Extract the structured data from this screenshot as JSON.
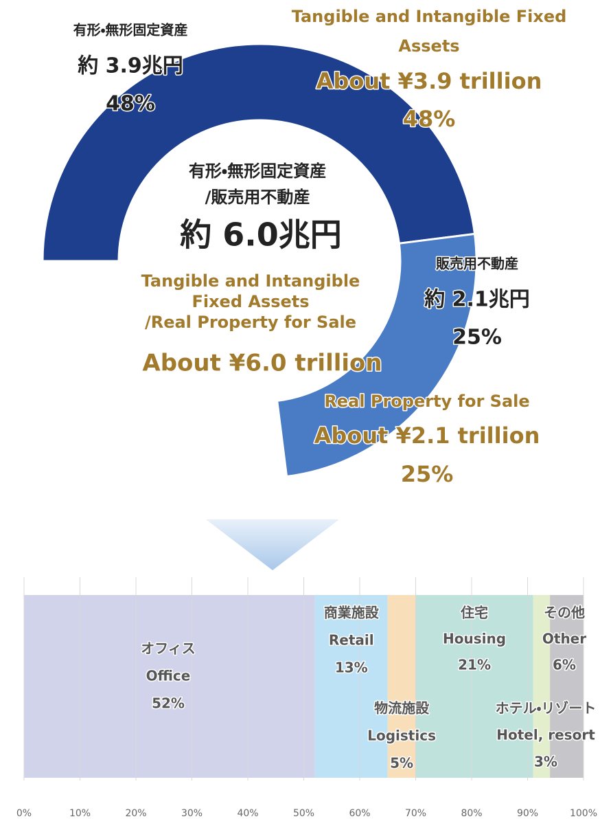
{
  "chart_data": [
    {
      "type": "donut",
      "center_ja": [
        "有形・無形固定資産",
        "/販売用不動産"
      ],
      "center_amount_ja": "約 6.0兆円",
      "center_en": [
        "Tangible and Intangible",
        "Fixed Assets",
        "/Real Property for Sale"
      ],
      "center_amount_en": "About ¥6.0 trillion",
      "segments": [
        {
          "name_ja": "有形・無形固定資産",
          "amount_ja": "約 3.9兆円",
          "name_en": [
            "Tangible and Intangible Fixed",
            "Assets"
          ],
          "amount_en": "About ¥3.9 trillion",
          "value": 48,
          "value_label": "48%",
          "color": "#1d3f8e"
        },
        {
          "name_ja": "販売用不動産",
          "amount_ja": "約 2.1兆円",
          "name_en": [
            "Real Property for Sale"
          ],
          "amount_en": "About ¥2.1 trillion",
          "value": 25,
          "value_label": "25%",
          "color": "#4a7cc6"
        }
      ]
    },
    {
      "type": "stacked-bar",
      "xlim": [
        0,
        100
      ],
      "xticks": [
        {
          "value": 0,
          "label": "0%"
        },
        {
          "value": 10,
          "label": "10%"
        },
        {
          "value": 20,
          "label": "20%"
        },
        {
          "value": 30,
          "label": "30%"
        },
        {
          "value": 40,
          "label": "40%"
        },
        {
          "value": 50,
          "label": "50%"
        },
        {
          "value": 60,
          "label": "60%"
        },
        {
          "value": 70,
          "label": "70%"
        },
        {
          "value": 80,
          "label": "80%"
        },
        {
          "value": 90,
          "label": "90%"
        },
        {
          "value": 100,
          "label": "100%"
        }
      ],
      "grid": true,
      "series": [
        {
          "name_ja": "オフィス",
          "name": "Office",
          "values": [
            52
          ],
          "value_labels": [
            "52%"
          ],
          "color": "#d1d3ea"
        },
        {
          "name_ja": "商業施設",
          "name": "Retail",
          "values": [
            13
          ],
          "value_labels": [
            "13%"
          ],
          "color": "#bde2f5"
        },
        {
          "name_ja": "物流施設",
          "name": "Logistics",
          "values": [
            5
          ],
          "value_labels": [
            "5%"
          ],
          "color": "#f8dfb9"
        },
        {
          "name_ja": "住宅",
          "name": "Housing",
          "values": [
            21
          ],
          "value_labels": [
            "21%"
          ],
          "color": "#bfe2dd"
        },
        {
          "name_ja": "ホテル・リゾート",
          "name": "Hotel, resort",
          "values": [
            3
          ],
          "value_labels": [
            "3%"
          ],
          "color": "#e3efcc"
        },
        {
          "name_ja": "その他",
          "name": "Other",
          "values": [
            6
          ],
          "value_labels": [
            "6%"
          ],
          "color": "#c6c6ca"
        }
      ]
    }
  ]
}
